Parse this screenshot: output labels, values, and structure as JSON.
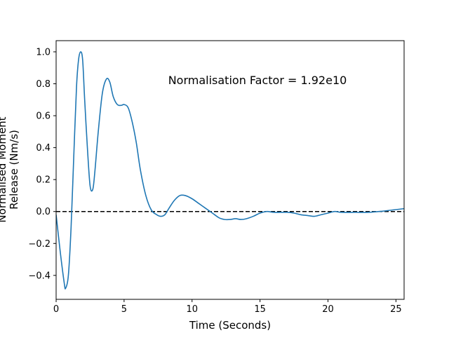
{
  "chart_data": {
    "type": "line",
    "title": "",
    "xlabel": "Time (Seconds)",
    "ylabel_lines": [
      "Normalised Moment",
      "Release (Nm/s)"
    ],
    "xlim": [
      0,
      25.6
    ],
    "ylim": [
      -0.55,
      1.07
    ],
    "xticks": [
      0,
      5,
      10,
      15,
      20,
      25
    ],
    "xtick_labels": [
      "0",
      "5",
      "10",
      "15",
      "20",
      "25"
    ],
    "yticks": [
      -0.4,
      -0.2,
      0.0,
      0.2,
      0.4,
      0.6,
      0.8,
      1.0
    ],
    "ytick_labels": [
      "−0.4",
      "−0.2",
      "0.0",
      "0.2",
      "0.4",
      "0.6",
      "0.8",
      "1.0"
    ],
    "grid": false,
    "annotation": "Normalisation Factor = 1.92e10",
    "reference_line": {
      "y": 0.0,
      "style": "dashed",
      "color": "#000000"
    },
    "series": [
      {
        "color": "#1f77b4",
        "x": [
          0,
          0.3,
          0.6,
          0.7,
          0.9,
          1.1,
          1.3,
          1.5,
          1.65,
          1.8,
          1.95,
          2.1,
          2.3,
          2.5,
          2.7,
          2.85,
          3.1,
          3.4,
          3.7,
          3.95,
          4.2,
          4.5,
          4.8,
          5.0,
          5.3,
          5.6,
          5.9,
          6.2,
          6.6,
          7.0,
          7.4,
          7.7,
          8.0,
          8.3,
          8.7,
          9.1,
          9.5,
          10.0,
          10.5,
          11.0,
          11.5,
          12.0,
          12.4,
          12.8,
          13.2,
          13.6,
          14.0,
          14.5,
          15.0,
          15.5,
          16.0,
          16.5,
          17.0,
          17.5,
          18.0,
          18.5,
          19.0,
          19.5,
          20.0,
          20.5,
          21.0,
          22.0,
          23.0,
          24.0,
          25.0,
          25.6
        ],
        "y": [
          -0.02,
          -0.25,
          -0.45,
          -0.48,
          -0.4,
          -0.1,
          0.35,
          0.78,
          0.95,
          1.0,
          0.95,
          0.7,
          0.4,
          0.16,
          0.14,
          0.25,
          0.5,
          0.74,
          0.83,
          0.81,
          0.72,
          0.67,
          0.665,
          0.67,
          0.65,
          0.56,
          0.43,
          0.26,
          0.1,
          0.01,
          -0.02,
          -0.03,
          -0.02,
          0.02,
          0.07,
          0.1,
          0.1,
          0.08,
          0.05,
          0.02,
          -0.01,
          -0.04,
          -0.05,
          -0.05,
          -0.045,
          -0.05,
          -0.045,
          -0.03,
          -0.01,
          0.0,
          -0.005,
          -0.005,
          -0.005,
          -0.01,
          -0.02,
          -0.025,
          -0.03,
          -0.02,
          -0.01,
          0.0,
          -0.005,
          -0.005,
          -0.005,
          0.002,
          0.012,
          0.018
        ]
      }
    ]
  }
}
